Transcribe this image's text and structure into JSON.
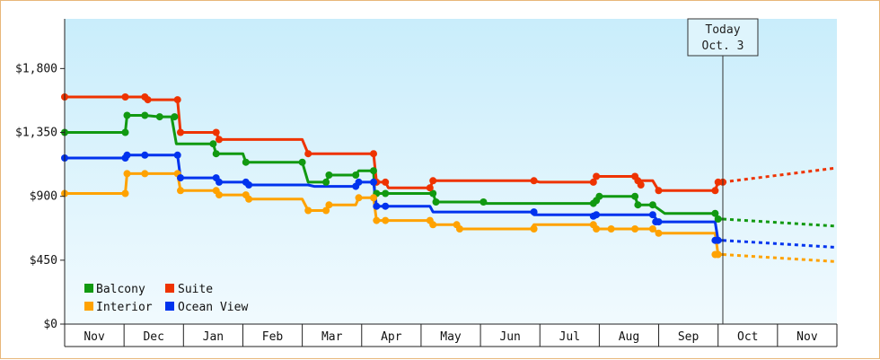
{
  "chart_data": {
    "type": "line",
    "title": "",
    "xlabel": "",
    "ylabel": "",
    "x_labels": [
      "Nov",
      "Dec",
      "Jan",
      "Feb",
      "Mar",
      "Apr",
      "May",
      "Jun",
      "Jul",
      "Aug",
      "Sep",
      "Oct",
      "Nov"
    ],
    "y_ticks": [
      "$0",
      "$450",
      "$900",
      "$1,350",
      "$1,800"
    ],
    "ylim": [
      0,
      2150
    ],
    "xlim": [
      0,
      13
    ],
    "grid": false,
    "legend_position": "bottom-left",
    "today_marker": {
      "x": 11.08,
      "line1": "Today",
      "line2": "Oct. 3"
    },
    "series": [
      {
        "name": "Balcony",
        "color": "#119911",
        "points": [
          [
            0,
            1350
          ],
          [
            1.02,
            1350
          ],
          [
            1.05,
            1470
          ],
          [
            1.35,
            1470
          ],
          [
            1.6,
            1460
          ],
          [
            1.8,
            1460
          ],
          [
            1.88,
            1270
          ],
          [
            2.5,
            1270
          ],
          [
            2.55,
            1200
          ],
          [
            3.0,
            1200
          ],
          [
            3.05,
            1140
          ],
          [
            4.0,
            1140
          ],
          [
            4.1,
            1000
          ],
          [
            4.4,
            1000
          ],
          [
            4.45,
            1050
          ],
          [
            4.9,
            1050
          ],
          [
            4.95,
            1080
          ],
          [
            5.2,
            1080
          ],
          [
            5.22,
            920
          ],
          [
            5.4,
            920
          ],
          [
            6.2,
            920
          ],
          [
            6.25,
            860
          ],
          [
            7.0,
            860
          ],
          [
            7.05,
            850
          ],
          [
            8.9,
            850
          ],
          [
            9.0,
            900
          ],
          [
            9.6,
            900
          ],
          [
            9.65,
            840
          ],
          [
            9.9,
            840
          ],
          [
            10.1,
            780
          ],
          [
            10.95,
            780
          ],
          [
            11.0,
            740
          ],
          [
            11.08,
            740
          ]
        ],
        "forecast": [
          [
            11.08,
            740
          ],
          [
            13.0,
            690
          ]
        ]
      },
      {
        "name": "Suite",
        "color": "#ee3300",
        "points": [
          [
            0,
            1600
          ],
          [
            1.02,
            1600
          ],
          [
            1.35,
            1600
          ],
          [
            1.4,
            1580
          ],
          [
            1.9,
            1580
          ],
          [
            1.95,
            1350
          ],
          [
            2.55,
            1350
          ],
          [
            2.6,
            1300
          ],
          [
            4.0,
            1300
          ],
          [
            4.1,
            1200
          ],
          [
            5.2,
            1200
          ],
          [
            5.25,
            1000
          ],
          [
            5.4,
            1000
          ],
          [
            5.45,
            960
          ],
          [
            6.15,
            960
          ],
          [
            6.2,
            1010
          ],
          [
            7.9,
            1010
          ],
          [
            8.0,
            1000
          ],
          [
            8.9,
            1000
          ],
          [
            8.95,
            1040
          ],
          [
            9.6,
            1040
          ],
          [
            9.65,
            1010
          ],
          [
            9.9,
            1010
          ],
          [
            10.0,
            940
          ],
          [
            10.95,
            940
          ],
          [
            11.0,
            1000
          ],
          [
            11.08,
            1000
          ]
        ],
        "forecast": [
          [
            11.08,
            1000
          ],
          [
            13.0,
            1100
          ]
        ]
      },
      {
        "name": "Interior",
        "color": "#ffa200",
        "points": [
          [
            0,
            920
          ],
          [
            1.02,
            920
          ],
          [
            1.05,
            1060
          ],
          [
            1.9,
            1060
          ],
          [
            1.95,
            940
          ],
          [
            2.55,
            940
          ],
          [
            2.6,
            910
          ],
          [
            3.05,
            910
          ],
          [
            3.1,
            880
          ],
          [
            4.0,
            880
          ],
          [
            4.1,
            800
          ],
          [
            4.4,
            800
          ],
          [
            4.45,
            840
          ],
          [
            4.9,
            840
          ],
          [
            4.95,
            890
          ],
          [
            5.2,
            890
          ],
          [
            5.25,
            730
          ],
          [
            6.15,
            730
          ],
          [
            6.2,
            700
          ],
          [
            6.6,
            700
          ],
          [
            6.65,
            670
          ],
          [
            7.85,
            670
          ],
          [
            7.9,
            700
          ],
          [
            8.9,
            700
          ],
          [
            8.95,
            670
          ],
          [
            9.9,
            670
          ],
          [
            10.0,
            640
          ],
          [
            10.95,
            640
          ],
          [
            11.0,
            490
          ],
          [
            11.08,
            490
          ]
        ],
        "forecast": [
          [
            11.08,
            490
          ],
          [
            13.0,
            440
          ]
        ]
      },
      {
        "name": "Ocean View",
        "color": "#0033ee",
        "points": [
          [
            0,
            1170
          ],
          [
            1.02,
            1170
          ],
          [
            1.05,
            1190
          ],
          [
            1.9,
            1190
          ],
          [
            1.95,
            1030
          ],
          [
            2.55,
            1030
          ],
          [
            2.6,
            1000
          ],
          [
            3.05,
            1000
          ],
          [
            3.1,
            980
          ],
          [
            4.1,
            980
          ],
          [
            4.2,
            970
          ],
          [
            4.9,
            970
          ],
          [
            4.95,
            1000
          ],
          [
            5.2,
            1000
          ],
          [
            5.25,
            830
          ],
          [
            6.15,
            830
          ],
          [
            6.2,
            790
          ],
          [
            7.85,
            790
          ],
          [
            7.9,
            770
          ],
          [
            9.9,
            770
          ],
          [
            10.0,
            720
          ],
          [
            10.95,
            720
          ],
          [
            11.0,
            590
          ],
          [
            11.08,
            590
          ]
        ],
        "forecast": [
          [
            11.08,
            590
          ],
          [
            13.0,
            540
          ]
        ]
      }
    ],
    "markers": {
      "Balcony": [
        [
          0,
          1350
        ],
        [
          1.02,
          1350
        ],
        [
          1.05,
          1470
        ],
        [
          1.35,
          1470
        ],
        [
          1.6,
          1460
        ],
        [
          1.85,
          1460
        ],
        [
          2.5,
          1270
        ],
        [
          2.55,
          1200
        ],
        [
          3.05,
          1140
        ],
        [
          4.0,
          1140
        ],
        [
          4.4,
          1000
        ],
        [
          4.45,
          1050
        ],
        [
          4.9,
          1050
        ],
        [
          5.2,
          1080
        ],
        [
          5.25,
          920
        ],
        [
          5.4,
          920
        ],
        [
          6.2,
          920
        ],
        [
          6.25,
          860
        ],
        [
          7.05,
          860
        ],
        [
          8.9,
          850
        ],
        [
          8.95,
          870
        ],
        [
          9.0,
          900
        ],
        [
          9.6,
          900
        ],
        [
          9.65,
          840
        ],
        [
          9.9,
          840
        ],
        [
          10.95,
          780
        ],
        [
          11.0,
          740
        ]
      ],
      "Suite": [
        [
          0,
          1600
        ],
        [
          1.02,
          1600
        ],
        [
          1.35,
          1600
        ],
        [
          1.4,
          1580
        ],
        [
          1.9,
          1580
        ],
        [
          1.95,
          1350
        ],
        [
          2.55,
          1350
        ],
        [
          2.6,
          1300
        ],
        [
          4.1,
          1200
        ],
        [
          5.2,
          1200
        ],
        [
          5.25,
          1000
        ],
        [
          5.4,
          1000
        ],
        [
          6.15,
          960
        ],
        [
          6.2,
          1010
        ],
        [
          7.9,
          1010
        ],
        [
          8.9,
          1000
        ],
        [
          8.95,
          1040
        ],
        [
          9.6,
          1040
        ],
        [
          9.65,
          1010
        ],
        [
          9.7,
          980
        ],
        [
          10.0,
          940
        ],
        [
          10.95,
          940
        ],
        [
          11.0,
          1000
        ],
        [
          11.08,
          1000
        ]
      ],
      "Interior": [
        [
          0,
          920
        ],
        [
          1.02,
          920
        ],
        [
          1.05,
          1060
        ],
        [
          1.35,
          1060
        ],
        [
          1.9,
          1060
        ],
        [
          1.95,
          940
        ],
        [
          2.55,
          940
        ],
        [
          2.6,
          910
        ],
        [
          3.05,
          910
        ],
        [
          3.1,
          880
        ],
        [
          4.1,
          800
        ],
        [
          4.4,
          800
        ],
        [
          4.45,
          840
        ],
        [
          4.95,
          890
        ],
        [
          5.2,
          890
        ],
        [
          5.25,
          730
        ],
        [
          5.4,
          730
        ],
        [
          6.15,
          730
        ],
        [
          6.2,
          700
        ],
        [
          6.6,
          700
        ],
        [
          6.65,
          670
        ],
        [
          7.9,
          670
        ],
        [
          8.9,
          700
        ],
        [
          8.95,
          670
        ],
        [
          9.2,
          670
        ],
        [
          9.6,
          670
        ],
        [
          9.9,
          670
        ],
        [
          10.0,
          640
        ],
        [
          10.95,
          490
        ],
        [
          11.0,
          490
        ]
      ],
      "Ocean View": [
        [
          0,
          1170
        ],
        [
          1.02,
          1170
        ],
        [
          1.05,
          1190
        ],
        [
          1.35,
          1190
        ],
        [
          1.9,
          1190
        ],
        [
          1.95,
          1030
        ],
        [
          2.55,
          1030
        ],
        [
          2.6,
          1000
        ],
        [
          3.05,
          1000
        ],
        [
          3.1,
          980
        ],
        [
          4.9,
          970
        ],
        [
          4.95,
          1000
        ],
        [
          5.2,
          1000
        ],
        [
          5.25,
          830
        ],
        [
          5.4,
          830
        ],
        [
          7.9,
          790
        ],
        [
          8.9,
          760
        ],
        [
          8.95,
          770
        ],
        [
          9.9,
          770
        ],
        [
          9.95,
          720
        ],
        [
          10.0,
          720
        ],
        [
          10.95,
          590
        ],
        [
          11.0,
          590
        ]
      ]
    }
  },
  "legend": {
    "balcony": "Balcony",
    "suite": "Suite",
    "interior": "Interior",
    "ocean_view": "Ocean View"
  }
}
